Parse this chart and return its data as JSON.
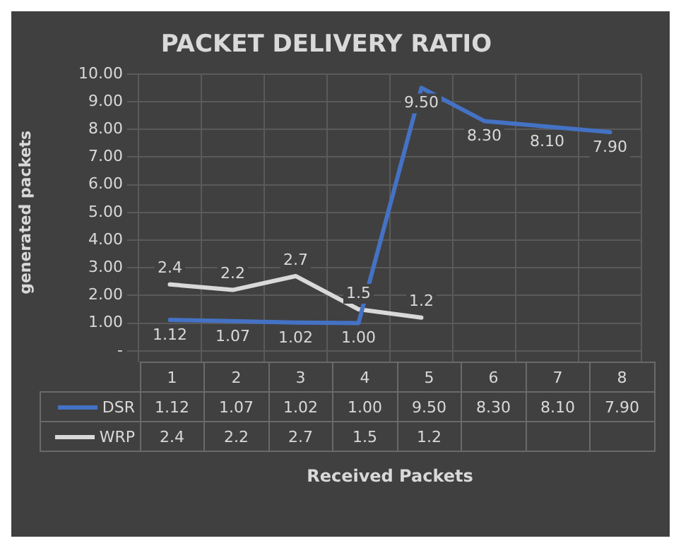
{
  "chart_data": {
    "type": "line",
    "title": "PACKET DELIVERY RATIO",
    "ylabel": "generated packets",
    "xlabel": "Received Packets",
    "categories": [
      "1",
      "2",
      "3",
      "4",
      "5",
      "6",
      "7",
      "8"
    ],
    "series": [
      {
        "name": "DSR",
        "color": "#4472c4",
        "values": [
          1.12,
          1.07,
          1.02,
          1.0,
          9.5,
          8.3,
          8.1,
          7.9
        ],
        "value_labels": [
          "1.12",
          "1.07",
          "1.02",
          "1.00",
          "9.50",
          "8.30",
          "8.10",
          "7.90"
        ]
      },
      {
        "name": "WRP",
        "color": "#d9d9d9",
        "values": [
          2.4,
          2.2,
          2.7,
          1.5,
          1.2,
          null,
          null,
          null
        ],
        "value_labels": [
          "2.4",
          "2.2",
          "2.7",
          "1.5",
          "1.2",
          null,
          null,
          null
        ]
      }
    ],
    "ylim": [
      0,
      10
    ],
    "yticks": [
      {
        "value": 0,
        "label": "-"
      },
      {
        "value": 1,
        "label": "1.00"
      },
      {
        "value": 2,
        "label": "2.00"
      },
      {
        "value": 3,
        "label": "3.00"
      },
      {
        "value": 4,
        "label": "4.00"
      },
      {
        "value": 5,
        "label": "5.00"
      },
      {
        "value": 6,
        "label": "6.00"
      },
      {
        "value": 7,
        "label": "7.00"
      },
      {
        "value": 8,
        "label": "8.00"
      },
      {
        "value": 9,
        "label": "9.00"
      },
      {
        "value": 10,
        "label": "10.00"
      }
    ],
    "grid": true,
    "legend": "bottom",
    "marker": "none",
    "line_style": "solid",
    "tick_labels": "y"
  }
}
